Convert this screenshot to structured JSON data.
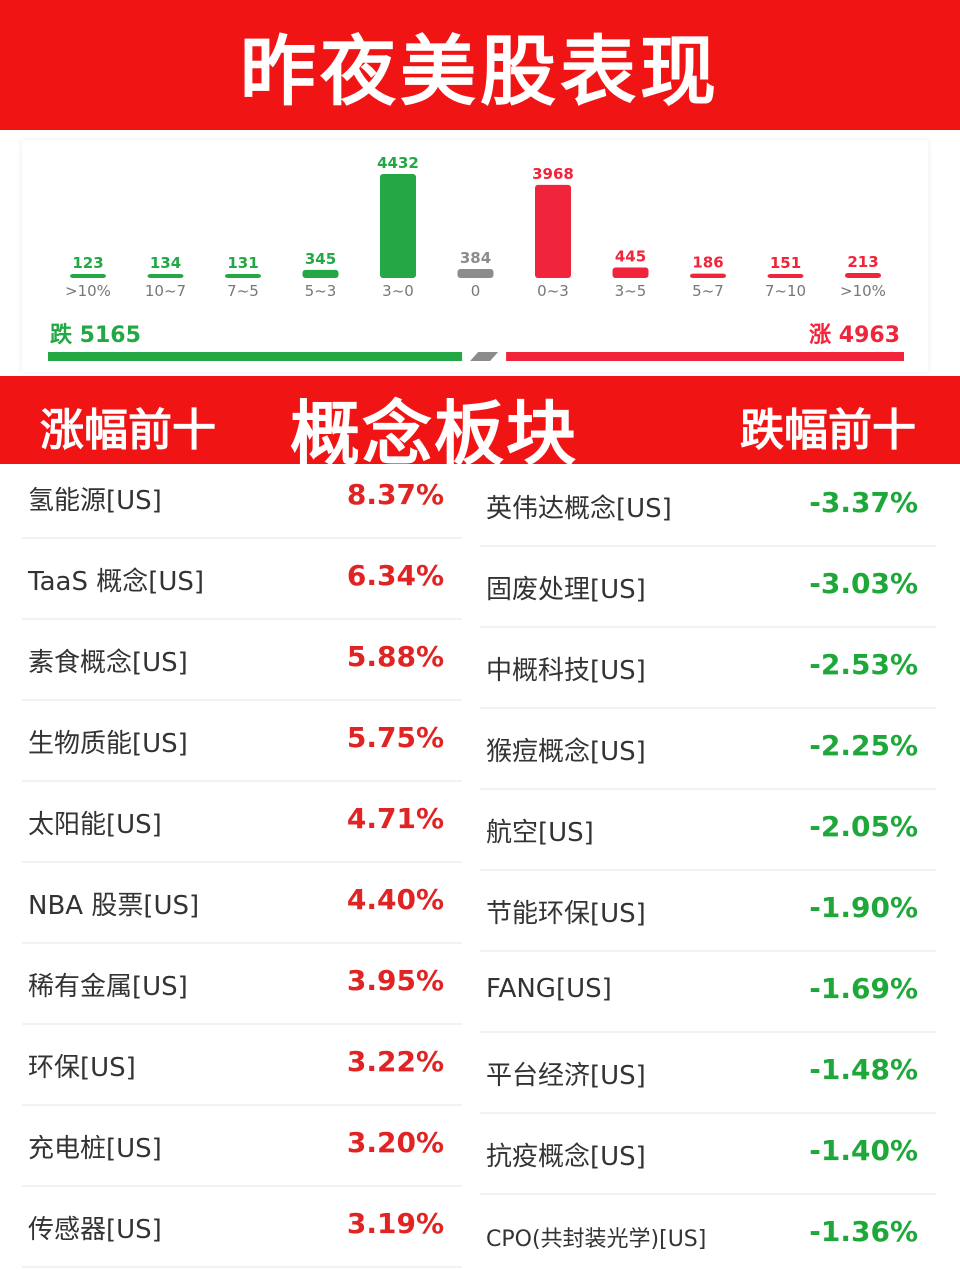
{
  "header": {
    "title": "昨夜美股表现"
  },
  "chart_data": {
    "type": "bar",
    "categories": [
      ">10%",
      "10~7",
      "7~5",
      "5~3",
      "3~0",
      "0",
      "0~3",
      "3~5",
      "5~7",
      "7~10",
      ">10%"
    ],
    "values": [
      123,
      134,
      131,
      345,
      4432,
      384,
      3968,
      445,
      186,
      151,
      213
    ],
    "colors": [
      "#23a845",
      "#23a845",
      "#23a845",
      "#23a845",
      "#23a845",
      "#8c8c8c",
      "#f0243a",
      "#f0243a",
      "#f0243a",
      "#f0243a",
      "#f0243a"
    ],
    "fall_label": "跌",
    "fall_total": "5165",
    "rise_label": "涨",
    "rise_total": "4963",
    "fall_color": "#23a845",
    "rise_color": "#f0243a"
  },
  "section": {
    "left_label": "涨幅前十",
    "center_label": "概念板块",
    "right_label": "跌幅前十"
  },
  "gainers": [
    {
      "name": "氢能源[US]",
      "pct": "8.37%"
    },
    {
      "name": "TaaS 概念[US]",
      "pct": "6.34%"
    },
    {
      "name": "素食概念[US]",
      "pct": "5.88%"
    },
    {
      "name": "生物质能[US]",
      "pct": "5.75%"
    },
    {
      "name": "太阳能[US]",
      "pct": "4.71%"
    },
    {
      "name": "NBA 股票[US]",
      "pct": "4.40%"
    },
    {
      "name": "稀有金属[US]",
      "pct": "3.95%"
    },
    {
      "name": "环保[US]",
      "pct": "3.22%"
    },
    {
      "name": "充电桩[US]",
      "pct": "3.20%"
    },
    {
      "name": "传感器[US]",
      "pct": "3.19%"
    }
  ],
  "losers": [
    {
      "name": "英伟达概念[US]",
      "pct": "-3.37%"
    },
    {
      "name": "固废处理[US]",
      "pct": "-3.03%"
    },
    {
      "name": "中概科技[US]",
      "pct": "-2.53%"
    },
    {
      "name": "猴痘概念[US]",
      "pct": "-2.25%"
    },
    {
      "name": "航空[US]",
      "pct": "-2.05%"
    },
    {
      "name": "节能环保[US]",
      "pct": "-1.90%"
    },
    {
      "name": "FANG[US]",
      "pct": "-1.69%"
    },
    {
      "name": "平台经济[US]",
      "pct": "-1.48%"
    },
    {
      "name": "抗疫概念[US]",
      "pct": "-1.40%"
    },
    {
      "name": "CPO(共封装光学)[US]",
      "pct": "-1.36%"
    }
  ]
}
